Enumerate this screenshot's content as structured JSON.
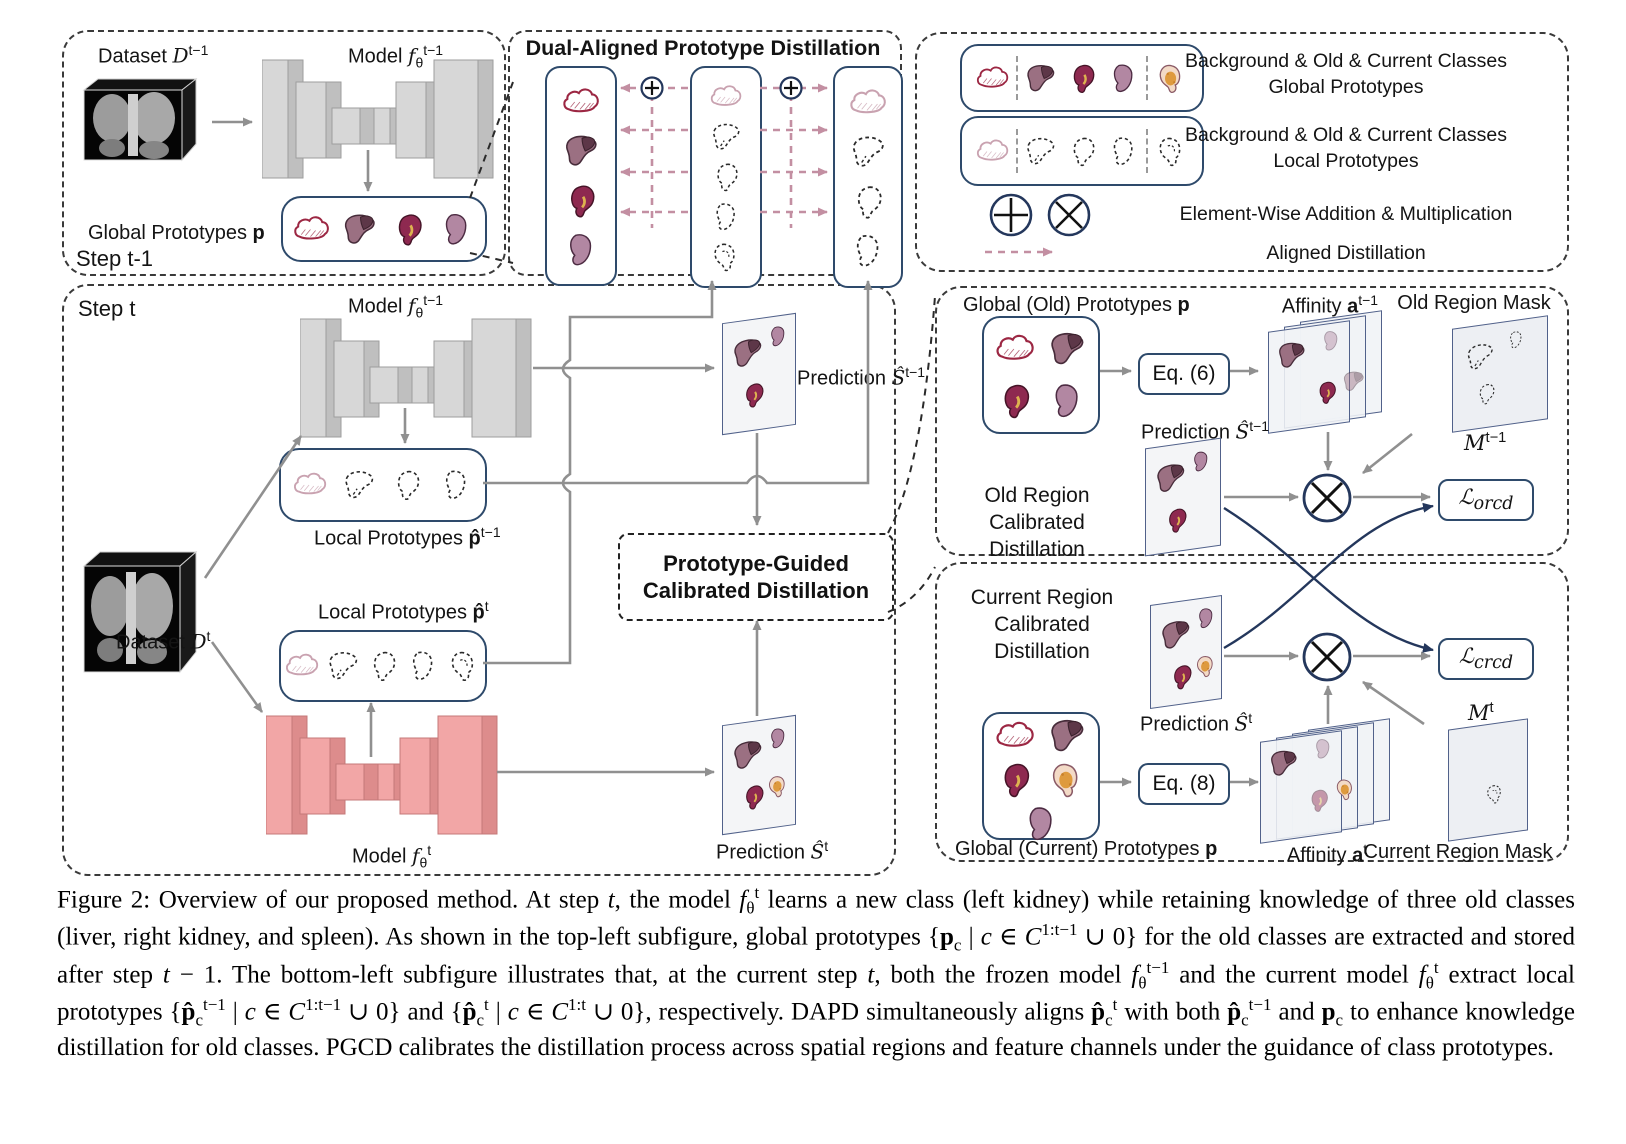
{
  "step_t1": {
    "step_label": "Step t-1",
    "dataset_label": "Dataset ~D~^{t−1}",
    "model_label": "Model ~f~_{θ}^{t−1}",
    "prototypes_label": "Global Prototypes **p**",
    "prototype_icons": [
      "cloud-solid",
      "liver-solid",
      "kidney-solid",
      "spleen-solid"
    ]
  },
  "dapd": {
    "title": "Dual-Aligned Prototype Distillation",
    "left_icons": [
      "cloud-solid",
      "liver-solid",
      "kidney-solid",
      "spleen-solid"
    ],
    "middle_icons": [
      "cloud-faded",
      "liver-dash",
      "kidney-dash",
      "spleen-dash",
      "kidneyL-dash"
    ],
    "right_icons": [
      "cloud-faded",
      "liver-dash",
      "kidney-dash",
      "spleen-dash"
    ]
  },
  "legend": {
    "row1_icons": [
      "cloud-solid",
      "vsep",
      "liver-solid",
      "kidney-solid",
      "spleen-solid",
      "vsep",
      "kidneyL-solid"
    ],
    "row1_line1": "Background & Old & Current Classes",
    "row1_line2": "Global Prototypes",
    "row2_icons": [
      "cloud-faded",
      "vsep",
      "liver-dash",
      "kidney-dash",
      "spleen-dash",
      "vsep",
      "kidneyL-dash"
    ],
    "row2_line1": "Background & Old & Current Classes",
    "row2_line2": "Local Prototypes",
    "row3_label": "Element-Wise Addition & Multiplication",
    "row4_label": "Aligned Distillation"
  },
  "step_t": {
    "step_label": "Step t",
    "dataset_label": "Dataset ~D~^{t}",
    "frozen_model_label": "Model ~f~_{θ}^{t−1}",
    "current_model_label": "Model ~f~_{θ}^{t}",
    "local_prev_label": "Local Prototypes **p̂**^{t−1}",
    "local_cur_label": "Local Prototypes **p̂**^{t}",
    "local_prev_icons": [
      "cloud-faded",
      "liver-dash",
      "kidney-dash",
      "spleen-dash"
    ],
    "local_cur_icons": [
      "cloud-faded",
      "liver-dash",
      "kidney-dash",
      "spleen-dash",
      "kidneyL-dash"
    ],
    "pred_prev_label": "Prediction ~Ŝ~^{t−1}",
    "pred_cur_label": "Prediction ~Ŝ~^{t}",
    "pred_prev_icons": [
      "liver-solid",
      "spleen-solid",
      "kidney-solid"
    ],
    "pred_cur_icons": [
      "liver-solid",
      "spleen-solid",
      "kidney-solid",
      "kidneyL-solid"
    ],
    "pgcd_line1": "Prototype-Guided",
    "pgcd_line2": "Calibrated Distillation"
  },
  "orcd": {
    "title_line1": "Old Region",
    "title_line2": "Calibrated",
    "title_line3": "Distillation",
    "prototypes_label": "Global (Old) Prototypes **p**",
    "prototype_icons": [
      "cloud-solid",
      "liver-solid",
      "kidney-solid",
      "spleen-solid"
    ],
    "eq_label": "Eq. (6)",
    "affinity_label": "Affinity **a**^{t−1}",
    "affinity_icons": [
      "liver-solid",
      "spleen-ghost",
      "kidney-solid",
      "liver-ghost"
    ],
    "mask_label": "Old Region Mask",
    "mask_symbol": "~M~^{t−1}",
    "mask_icons": [
      "liver-dash",
      "spleen-dash",
      "kidney-dash"
    ],
    "pred_label": "Prediction ~Ŝ~^{t−1}",
    "pred_icons": [
      "liver-solid",
      "spleen-solid",
      "kidney-solid"
    ],
    "loss_label": "ℒ_{orcd}"
  },
  "crcd": {
    "title_line1": "Current Region",
    "title_line2": "Calibrated",
    "title_line3": "Distillation",
    "prototypes_label": "Global (Current) Prototypes **p**",
    "prototype_icons": [
      "cloud-solid",
      "liver-solid",
      "kidney-solid",
      "kidneyL-solid",
      "spleen-solid"
    ],
    "eq_label": "Eq. (8)",
    "affinity_label": "Affinity **a**^{t}",
    "affinity_icons": [
      "liver-solid",
      "spleen-ghost",
      "kidney-ghost",
      "kidneyL-solid"
    ],
    "mask_label": "Current Region Mask",
    "mask_symbol": "~M~^{t}",
    "mask_icons": [
      "kidneyL-dash"
    ],
    "pred_label": "Prediction ~Ŝ~^{t}",
    "pred_icons": [
      "liver-solid",
      "spleen-solid",
      "kidney-solid",
      "kidneyL-solid"
    ],
    "loss_label": "ℒ_{crcd}"
  },
  "caption": "Figure 2: Overview of our proposed method. At step ~t~, the model ~f~_{θ}^{t} learns a new class (left kidney) while retaining knowledge of three old classes (liver, right kidney, and spleen). As shown in the top-left subfigure, global prototypes {**p**_{c} | ~c~ ∈ ~C~^{1:t−1} ∪ 0} for the old classes are extracted and stored after step ~t~ − 1. The bottom-left subfigure illustrates that, at the current step ~t~, both the frozen model ~f~_{θ}^{t−1} and the current model ~f~_{θ}^{t} extract local prototypes {**p̂**_{c}^{t−1} | ~c~ ∈ ~C~^{1:t−1} ∪ 0} and {**p̂**_{c}^{t} | ~c~ ∈ ~C~^{1:t} ∪ 0}, respectively. DAPD simultaneously aligns **p̂**_{c}^{t} with both **p̂**_{c}^{t−1} and **p**_{c} to enhance knowledge distillation for old classes. PGCD calibrates the distillation process across spatial regions and feature channels under the guidance of class prototypes."
}
